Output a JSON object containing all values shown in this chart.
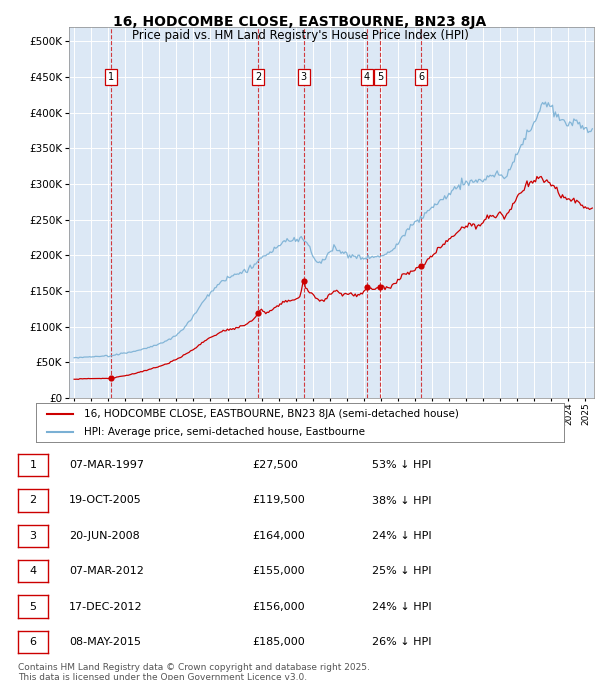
{
  "title": "16, HODCOMBE CLOSE, EASTBOURNE, BN23 8JA",
  "subtitle": "Price paid vs. HM Land Registry's House Price Index (HPI)",
  "transactions": [
    {
      "num": 1,
      "date_dec": 1997.18,
      "price": 27500
    },
    {
      "num": 2,
      "date_dec": 2005.8,
      "price": 119500
    },
    {
      "num": 3,
      "date_dec": 2008.47,
      "price": 164000
    },
    {
      "num": 4,
      "date_dec": 2012.18,
      "price": 155000
    },
    {
      "num": 5,
      "date_dec": 2012.96,
      "price": 156000
    },
    {
      "num": 6,
      "date_dec": 2015.35,
      "price": 185000
    }
  ],
  "table_rows": [
    {
      "num": 1,
      "date": "07-MAR-1997",
      "price": "£27,500",
      "pct": "53% ↓ HPI"
    },
    {
      "num": 2,
      "date": "19-OCT-2005",
      "price": "£119,500",
      "pct": "38% ↓ HPI"
    },
    {
      "num": 3,
      "date": "20-JUN-2008",
      "price": "£164,000",
      "pct": "24% ↓ HPI"
    },
    {
      "num": 4,
      "date": "07-MAR-2012",
      "price": "£155,000",
      "pct": "25% ↓ HPI"
    },
    {
      "num": 5,
      "date": "17-DEC-2012",
      "price": "£156,000",
      "pct": "24% ↓ HPI"
    },
    {
      "num": 6,
      "date": "08-MAY-2015",
      "price": "£185,000",
      "pct": "26% ↓ HPI"
    }
  ],
  "hpi_color": "#7ab0d4",
  "price_color": "#cc0000",
  "marker_color": "#cc0000",
  "vline_color": "#cc0000",
  "plot_bg": "#dce8f5",
  "grid_color": "#ffffff",
  "ylim": [
    0,
    520000
  ],
  "yticks": [
    0,
    50000,
    100000,
    150000,
    200000,
    250000,
    300000,
    350000,
    400000,
    450000,
    500000
  ],
  "xmin": 1994.7,
  "xmax": 2025.5,
  "footnote": "Contains HM Land Registry data © Crown copyright and database right 2025.\nThis data is licensed under the Open Government Licence v3.0.",
  "legend_line1": "16, HODCOMBE CLOSE, EASTBOURNE, BN23 8JA (semi-detached house)",
  "legend_line2": "HPI: Average price, semi-detached house, Eastbourne"
}
